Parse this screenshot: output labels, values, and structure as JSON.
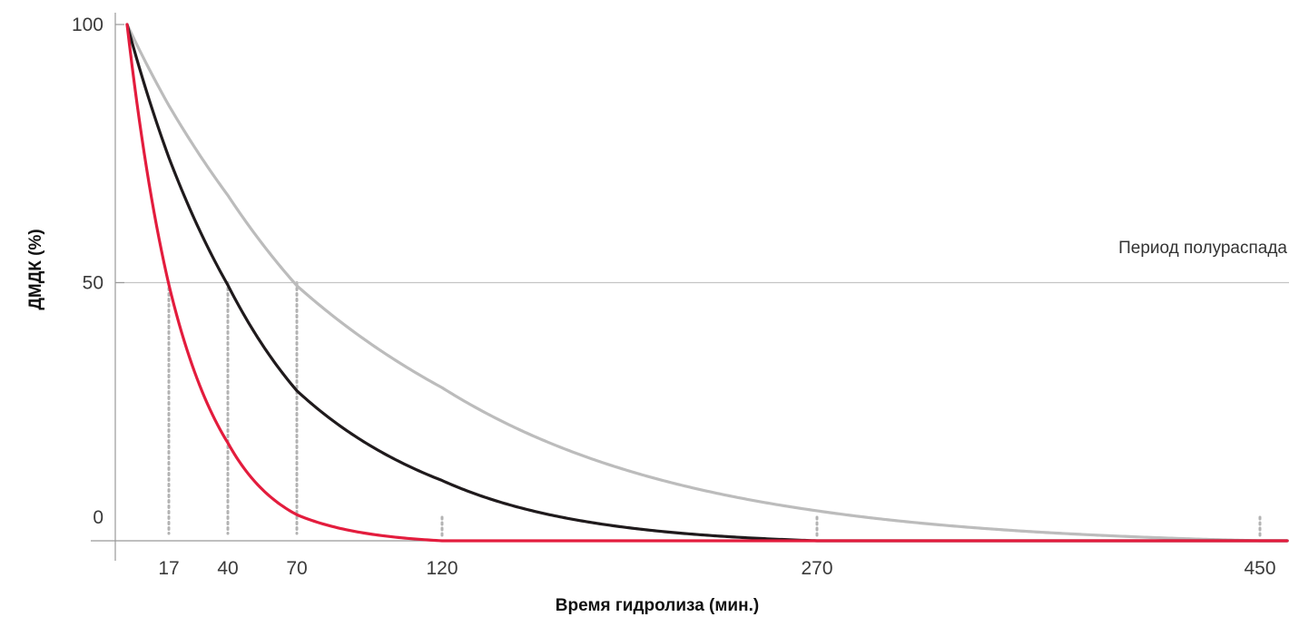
{
  "chart_data": {
    "type": "line",
    "title": "",
    "xlabel": "Время гидролиза (мин.)",
    "ylabel": "ДМДК (%)",
    "y_ticks": [
      "100",
      "50",
      "0"
    ],
    "y_tick_values": [
      100,
      50,
      0
    ],
    "x_ticks": [
      "17",
      "40",
      "70",
      "120",
      "270",
      "450"
    ],
    "x_tick_values": [
      17,
      40,
      70,
      120,
      270,
      450
    ],
    "ylim": [
      0,
      100
    ],
    "reference_line": {
      "y": 50,
      "label": "Период полураспада"
    },
    "grid": false,
    "colors": {
      "red": "#e31c3d",
      "black": "#1f1a1c",
      "gray": "#bcbcbc",
      "axis": "#999999",
      "marker": "#b3b3b3"
    },
    "series": [
      {
        "color": "#e31c3d",
        "half_life": 17,
        "x": [
          0,
          5,
          10,
          17,
          25,
          40,
          55,
          70,
          85,
          100,
          120,
          200,
          300,
          350
        ],
        "y": [
          100,
          85,
          68,
          50,
          36,
          22,
          13,
          7,
          3.5,
          1,
          0,
          0,
          0,
          0
        ]
      },
      {
        "color": "#1f1a1c",
        "half_life": 40,
        "x": [
          0,
          10,
          20,
          40,
          70,
          100,
          130,
          160,
          190,
          220,
          250,
          270,
          350,
          450
        ],
        "y": [
          100,
          80,
          67,
          50,
          34,
          23,
          15,
          9,
          5,
          2.5,
          0.8,
          0,
          0,
          0
        ]
      },
      {
        "color": "#bcbcbc",
        "half_life": 70,
        "x": [
          0,
          15,
          35,
          70,
          100,
          130,
          160,
          190,
          220,
          250,
          300,
          350,
          400,
          450
        ],
        "y": [
          100,
          85,
          69,
          50,
          40,
          31,
          25,
          19,
          15,
          11,
          6,
          3,
          1,
          0
        ]
      }
    ],
    "half_life_markers": [
      17,
      40,
      70
    ],
    "end_markers": [
      120,
      270,
      450
    ]
  }
}
